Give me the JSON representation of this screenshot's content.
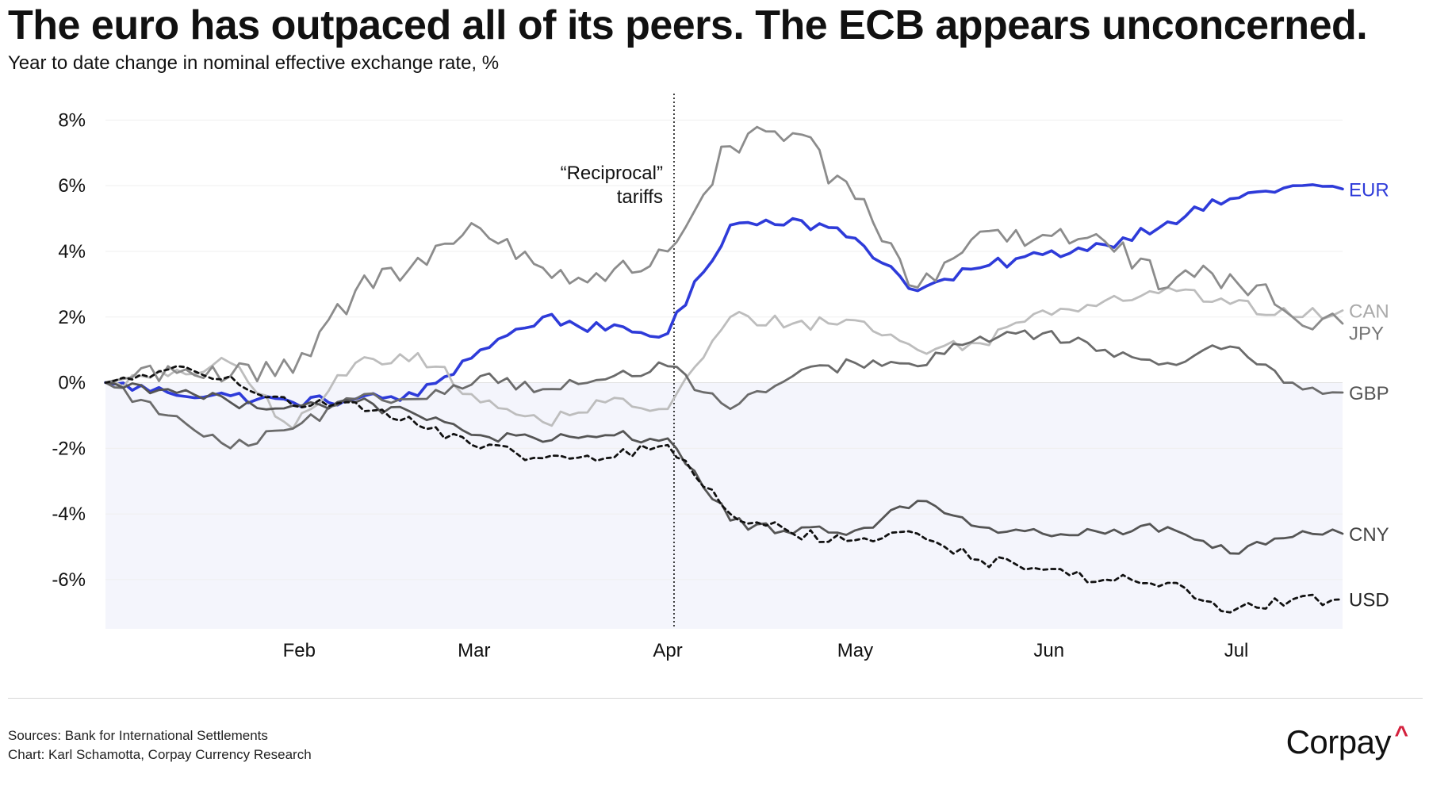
{
  "header": {
    "title": "The euro has outpaced all of its peers. The ECB appears unconcerned.",
    "subtitle": "Year to date change in nominal effective exchange rate, %"
  },
  "footer": {
    "sources": "Sources: Bank for International Settlements",
    "credit": "Chart: Karl Schamotta, Corpay Currency Research",
    "brand": "Corpay",
    "brand_mark": "^"
  },
  "chart_data": {
    "type": "line",
    "title": "The euro has outpaced all of its peers. The ECB appears unconcerned.",
    "subtitle": "Year to date change in nominal effective exchange rate, %",
    "xlabel": "",
    "ylabel": "",
    "x": [
      "2025-01-01",
      "2025-01-11",
      "2025-01-21",
      "2025-01-31",
      "2025-02-10",
      "2025-02-20",
      "2025-03-02",
      "2025-03-12",
      "2025-03-22",
      "2025-04-01",
      "2025-04-11",
      "2025-04-21",
      "2025-05-01",
      "2025-05-11",
      "2025-05-21",
      "2025-05-31",
      "2025-06-10",
      "2025-06-20",
      "2025-06-30",
      "2025-07-10",
      "2025-07-18"
    ],
    "xlim": [
      "2025-01-01",
      "2025-07-18"
    ],
    "ylim": [
      -7.5,
      9
    ],
    "y_ticks": [
      8,
      6,
      4,
      2,
      0,
      -2,
      -4,
      -6
    ],
    "y_tick_labels": [
      "8%",
      "6%",
      "4%",
      "2%",
      "0%",
      "-2%",
      "-4%",
      "-6%"
    ],
    "x_ticks": [
      "2025-02-01",
      "2025-03-01",
      "2025-04-01",
      "2025-05-01",
      "2025-06-01",
      "2025-07-01"
    ],
    "x_tick_labels": [
      "Feb",
      "Mar",
      "Apr",
      "May",
      "Jun",
      "Jul"
    ],
    "negative_region_shaded": true,
    "series": [
      {
        "name": "EUR",
        "color": "#2e3bd9",
        "dashed": false,
        "label_color": "#2e3bd9",
        "values": [
          0.0,
          -0.3,
          -0.4,
          -0.6,
          -0.5,
          -0.4,
          1.0,
          2.0,
          1.6,
          1.5,
          4.8,
          5.0,
          4.4,
          2.8,
          3.5,
          3.9,
          4.2,
          4.9,
          5.6,
          6.0,
          5.9
        ]
      },
      {
        "name": "CAN",
        "color": "#bdbdbd",
        "dashed": false,
        "label_color": "#aaaaaa",
        "values": [
          0.0,
          0.2,
          0.6,
          -1.4,
          0.6,
          0.9,
          -0.6,
          -1.2,
          -0.6,
          -0.8,
          2.0,
          1.8,
          1.9,
          1.0,
          1.2,
          2.2,
          2.5,
          2.9,
          2.4,
          2.0,
          2.2
        ]
      },
      {
        "name": "JPY",
        "color": "#8c8c8c",
        "dashed": false,
        "label_color": "#777777",
        "values": [
          0.0,
          0.5,
          0.2,
          0.3,
          2.8,
          3.8,
          4.7,
          3.5,
          3.1,
          4.0,
          7.2,
          7.6,
          5.6,
          2.9,
          4.6,
          4.5,
          4.3,
          2.9,
          3.3,
          2.0,
          1.8
        ]
      },
      {
        "name": "GBP",
        "color": "#6b6b6b",
        "dashed": false,
        "label_color": "#555555",
        "values": [
          0.0,
          -1.0,
          -2.0,
          -1.4,
          -0.5,
          -0.5,
          0.2,
          -0.2,
          0.1,
          0.5,
          -0.8,
          0.2,
          0.6,
          0.5,
          1.4,
          1.5,
          1.0,
          0.6,
          1.1,
          0.0,
          -0.3
        ]
      },
      {
        "name": "CNY",
        "color": "#555555",
        "dashed": false,
        "label_color": "#444444",
        "values": [
          0.0,
          -0.2,
          -0.6,
          -0.7,
          -0.6,
          -1.0,
          -1.6,
          -1.8,
          -1.6,
          -1.7,
          -4.2,
          -4.6,
          -4.5,
          -3.6,
          -4.4,
          -4.6,
          -4.6,
          -4.4,
          -5.2,
          -4.7,
          -4.6
        ]
      },
      {
        "name": "USD",
        "color": "#111111",
        "dashed": true,
        "label_color": "#222222",
        "values": [
          0.0,
          0.4,
          0.2,
          -0.7,
          -0.6,
          -1.3,
          -2.0,
          -2.3,
          -2.3,
          -1.9,
          -4.0,
          -4.6,
          -4.8,
          -4.6,
          -5.4,
          -5.7,
          -6.0,
          -6.1,
          -7.0,
          -6.6,
          -6.6
        ]
      }
    ],
    "annotations": [
      {
        "text_lines": [
          "“Reciprocal”",
          "tariffs"
        ],
        "x": "2025-04-02",
        "style": "dotted vertical line"
      }
    ]
  }
}
